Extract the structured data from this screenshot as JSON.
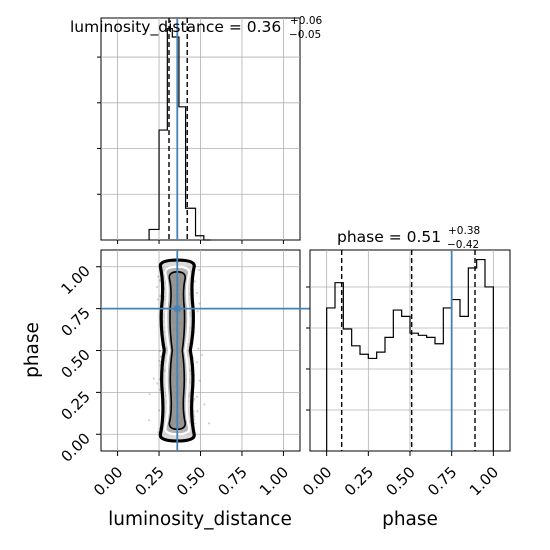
{
  "chart_data": {
    "type": "corner",
    "parameters": [
      "luminosity_distance",
      "phase"
    ],
    "truths": {
      "luminosity_distance": 0.36,
      "phase": 0.75
    },
    "panels": [
      {
        "name": "luminosity_distance_marginal",
        "type": "histogram",
        "title_label": "luminosity_distance",
        "title_value": "0.36",
        "title_upper": "+0.06",
        "title_lower": "−0.05",
        "xlim": [
          -0.1,
          1.1
        ],
        "bins": [
          0.19,
          0.25,
          0.3,
          0.33,
          0.37,
          0.41,
          0.47,
          0.52,
          0.56
        ],
        "counts": [
          0.05,
          0.52,
          1.0,
          0.96,
          0.63,
          0.15,
          0.02,
          0.0
        ],
        "quantiles": [
          0.31,
          0.36,
          0.42
        ]
      },
      {
        "name": "phase_marginal",
        "type": "histogram",
        "title_label": "phase",
        "title_value": "0.51",
        "title_upper": "+0.38",
        "title_lower": "−0.42",
        "xlim": [
          -0.1,
          1.1
        ],
        "bins": [
          0.0,
          0.05,
          0.1,
          0.15,
          0.2,
          0.25,
          0.3,
          0.35,
          0.4,
          0.45,
          0.5,
          0.55,
          0.6,
          0.65,
          0.7,
          0.75,
          0.8,
          0.85,
          0.9,
          0.95,
          1.0
        ],
        "counts": [
          0.68,
          0.8,
          0.58,
          0.5,
          0.46,
          0.44,
          0.47,
          0.54,
          0.67,
          0.64,
          0.56,
          0.55,
          0.54,
          0.51,
          0.68,
          0.72,
          0.64,
          0.87,
          0.91,
          0.78
        ],
        "quantiles": [
          0.09,
          0.51,
          0.89
        ]
      },
      {
        "name": "joint_density",
        "type": "scatter_contour",
        "x": "luminosity_distance",
        "y": "phase",
        "xlim": [
          -0.1,
          1.1
        ],
        "ylim": [
          -0.1,
          1.1
        ],
        "x_center": 0.36,
        "x_spread": 0.05,
        "contour_levels": 3
      }
    ],
    "axes": {
      "xlabels": [
        "luminosity_distance",
        "phase"
      ],
      "ylabel": "phase",
      "ticks": [
        "0.00",
        "0.25",
        "0.50",
        "0.75",
        "1.00"
      ]
    },
    "grid": true
  },
  "colors": {
    "truth": "#4682b4",
    "hist": "#000000",
    "grid": "#b0b0b0"
  }
}
